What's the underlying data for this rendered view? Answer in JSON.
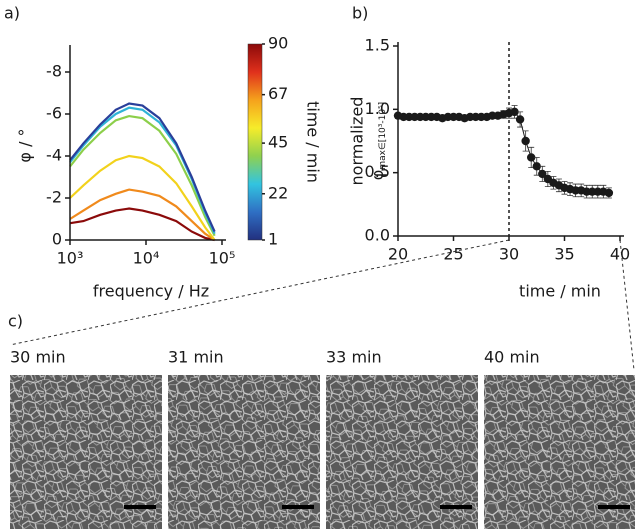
{
  "panel_labels": [
    "a)",
    "b)",
    "c)"
  ],
  "chart_data": [
    {
      "type": "line",
      "xlabel": "frequency / Hz",
      "ylabel": "φ / °",
      "log_x": true,
      "x": [
        1000,
        1500,
        2500,
        4000,
        6000,
        9000,
        15000,
        25000,
        40000,
        60000,
        80000
      ],
      "xlim": [
        1000,
        100000
      ],
      "xticks": [
        {
          "value": 1000,
          "label": "10³"
        },
        {
          "value": 10000,
          "label": "10⁴"
        },
        {
          "value": 100000,
          "label": "10⁵"
        }
      ],
      "ylim": [
        0,
        -9
      ],
      "yticks": [
        0,
        -2,
        -4,
        -6,
        -8
      ],
      "series": [
        {
          "color": "#8b0a0a",
          "values": [
            -0.8,
            -0.9,
            -1.2,
            -1.4,
            -1.5,
            -1.4,
            -1.2,
            -0.9,
            -0.4,
            -0.1,
            0
          ]
        },
        {
          "color": "#f08a1c",
          "values": [
            -1.0,
            -1.4,
            -1.9,
            -2.2,
            -2.4,
            -2.3,
            -2.1,
            -1.6,
            -0.9,
            -0.3,
            0
          ]
        },
        {
          "color": "#f2d21c",
          "values": [
            -2.0,
            -2.6,
            -3.3,
            -3.8,
            -4.0,
            -3.9,
            -3.5,
            -2.7,
            -1.6,
            -0.6,
            0
          ]
        },
        {
          "color": "#8ccf4a",
          "values": [
            -3.5,
            -4.3,
            -5.1,
            -5.7,
            -5.9,
            -5.8,
            -5.2,
            -4.1,
            -2.6,
            -1.1,
            -0.2
          ]
        },
        {
          "color": "#2fb3d6",
          "values": [
            -3.7,
            -4.5,
            -5.4,
            -6.0,
            -6.3,
            -6.2,
            -5.6,
            -4.5,
            -2.9,
            -1.3,
            -0.3
          ]
        },
        {
          "color": "#2a3f9a",
          "values": [
            -3.8,
            -4.6,
            -5.5,
            -6.2,
            -6.5,
            -6.4,
            -5.8,
            -4.6,
            -3.0,
            -1.4,
            -0.4
          ]
        }
      ],
      "colorbar": {
        "label": "time / min",
        "range": [
          1,
          90
        ],
        "ticks": [
          1,
          22,
          45,
          67,
          90
        ],
        "colors": [
          "#22307f",
          "#2f6fc4",
          "#32c4e0",
          "#8fd14f",
          "#f6ec2a",
          "#f5a21c",
          "#e0301c",
          "#8b0a0a"
        ]
      }
    },
    {
      "type": "scatter",
      "xlabel": "time / min",
      "ylabel": "normalized",
      "ylabel_symbol": "φ",
      "ylabel_subscript": "max∈[10³-10⁵]",
      "x": [
        20,
        20.5,
        21,
        21.5,
        22,
        22.5,
        23,
        23.5,
        24,
        24.5,
        25,
        25.5,
        26,
        26.5,
        27,
        27.5,
        28,
        28.5,
        29,
        29.5,
        30,
        30.5,
        31,
        31.5,
        32,
        32.5,
        33,
        33.5,
        34,
        34.5,
        35,
        35.5,
        36,
        36.5,
        37,
        37.5,
        38,
        38.5,
        39
      ],
      "values": [
        0.95,
        0.94,
        0.94,
        0.94,
        0.94,
        0.94,
        0.94,
        0.94,
        0.93,
        0.94,
        0.94,
        0.94,
        0.93,
        0.94,
        0.94,
        0.94,
        0.94,
        0.95,
        0.95,
        0.96,
        0.97,
        0.98,
        0.92,
        0.75,
        0.62,
        0.55,
        0.49,
        0.45,
        0.42,
        0.4,
        0.38,
        0.37,
        0.36,
        0.36,
        0.35,
        0.35,
        0.35,
        0.35,
        0.34
      ],
      "errors": [
        0.02,
        0.02,
        0.02,
        0.02,
        0.02,
        0.02,
        0.02,
        0.02,
        0.02,
        0.02,
        0.02,
        0.02,
        0.02,
        0.02,
        0.02,
        0.02,
        0.02,
        0.02,
        0.02,
        0.03,
        0.04,
        0.05,
        0.06,
        0.08,
        0.08,
        0.07,
        0.06,
        0.06,
        0.05,
        0.05,
        0.05,
        0.05,
        0.05,
        0.05,
        0.05,
        0.05,
        0.05,
        0.05,
        0.04
      ],
      "color": "#1a1a1a",
      "xlim": [
        20,
        40
      ],
      "xticks": [
        20,
        25,
        30,
        35,
        40
      ],
      "ylim": [
        0,
        1.5
      ],
      "yticks": [
        {
          "value": 0,
          "label": "0.0"
        },
        {
          "value": 0.5,
          "label": "0.5"
        },
        {
          "value": 1,
          "label": "1.0"
        },
        {
          "value": 1.5,
          "label": "1.5"
        }
      ],
      "vline": 30
    }
  ],
  "micrographs": [
    {
      "label": "30 min"
    },
    {
      "label": "31 min"
    },
    {
      "label": "33 min"
    },
    {
      "label": "40 min"
    }
  ]
}
